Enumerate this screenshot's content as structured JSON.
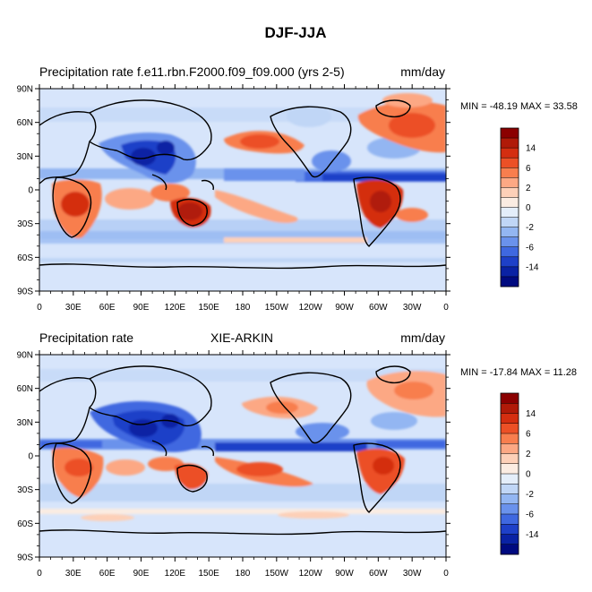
{
  "chart_data": {
    "type": "heatmap",
    "title": "DJF-JJA",
    "unit_label": "mm/day",
    "x_ticks": [
      "0",
      "30E",
      "60E",
      "90E",
      "120E",
      "150E",
      "180",
      "150W",
      "120W",
      "90W",
      "60W",
      "30W",
      "0"
    ],
    "y_ticks": [
      "90N",
      "60N",
      "30N",
      "0",
      "30S",
      "60S",
      "90S"
    ],
    "x_range_deg_east": [
      0,
      360
    ],
    "y_range_deg_north": [
      -90,
      90
    ],
    "colorbar": {
      "levels": [
        "14",
        "6",
        "2",
        "0",
        "-2",
        "-6",
        "-14"
      ],
      "colors": [
        "#8b0000",
        "#b01a08",
        "#d42e10",
        "#ec5026",
        "#f87e4e",
        "#fca884",
        "#fdd0b8",
        "#fbece2",
        "#e4eefa",
        "#c0d6f6",
        "#93b6f2",
        "#6a92ec",
        "#3f68e0",
        "#1e40c8",
        "#0a22a4",
        "#000a80"
      ]
    },
    "panels": [
      {
        "id": "model",
        "left_title": "Precipitation rate f.e11.rbn.F2000.f09_f09.000 (yrs 2-5)",
        "center_title": "",
        "right_title": "mm/day",
        "min": -48.19,
        "max": 33.58,
        "stats_label": "MIN = -48.19 MAX =  33.58"
      },
      {
        "id": "obs",
        "left_title": "Precipitation rate",
        "center_title": "XIE-ARKIN",
        "right_title": "mm/day",
        "min": -17.84,
        "max": 11.28,
        "stats_label": "MIN = -17.84 MAX =  11.28"
      }
    ]
  }
}
